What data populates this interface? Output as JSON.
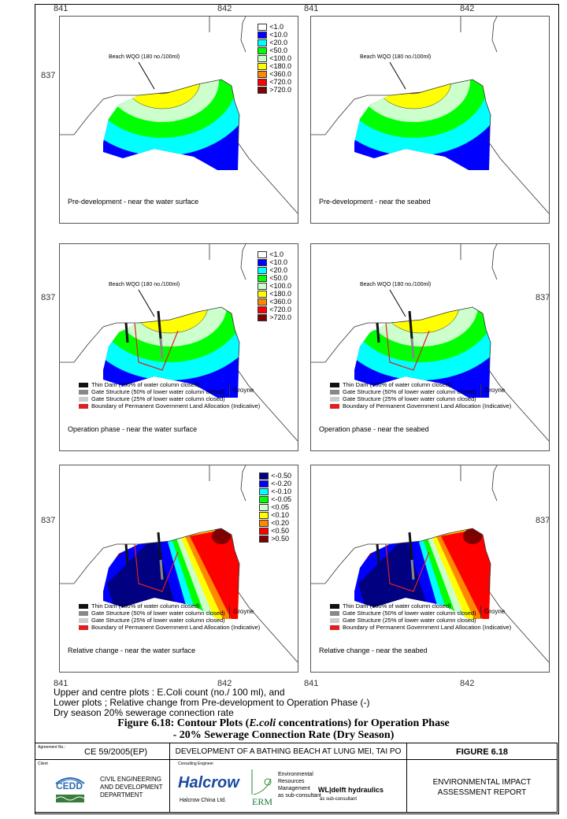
{
  "axes": {
    "x_left": "841",
    "x_right": "842",
    "y": "837"
  },
  "colors": {
    "conc": [
      "#ffffff",
      "#0000ff",
      "#00ffff",
      "#00ff00",
      "#ccffcc",
      "#ffff00",
      "#ff8800",
      "#ff0000",
      "#800000"
    ],
    "rel": [
      "#000080",
      "#0000ff",
      "#00ffff",
      "#00ff00",
      "#ccffcc",
      "#ffff00",
      "#ff8800",
      "#ff0000",
      "#800000"
    ]
  },
  "legend_conc": [
    "<1.0",
    "<10.0",
    "<20.0",
    "<50.0",
    "<100.0",
    "<180.0",
    "<360.0",
    "<720.0",
    ">720.0"
  ],
  "legend_rel": [
    "<-0.50",
    "<-0.20",
    "<-0.10",
    "<-0.05",
    "<0.05",
    "<0.10",
    "<0.20",
    "<0.50",
    ">0.50"
  ],
  "wqo_label": "Beach WQO (180 no./100ml)",
  "structures": [
    "Thin Dam (100% of water column closed)",
    "Gate Structure (50% of lower water column closed)",
    "Gate Structure (25% of lower water column closed)",
    "Boundary of Permanent Government Land Allocation (Indicative)"
  ],
  "groyne": "Groyne",
  "panels": [
    {
      "label": "Pre-development - near the water surface",
      "kind": "conc",
      "legend": true,
      "wqo": true,
      "structs": false
    },
    {
      "label": "Pre-development - near the seabed",
      "kind": "conc",
      "legend": false,
      "wqo": true,
      "structs": false
    },
    {
      "label": "Operation phase - near the water surface",
      "kind": "op",
      "legend": true,
      "wqo": true,
      "structs": true
    },
    {
      "label": "Operation phase - near the seabed",
      "kind": "op",
      "legend": false,
      "wqo": true,
      "structs": true
    },
    {
      "label": "Relative change - near the water surface",
      "kind": "rel",
      "legend": true,
      "wqo": false,
      "structs": true
    },
    {
      "label": "Relative change - near the seabed",
      "kind": "rel",
      "legend": false,
      "wqo": false,
      "structs": true
    }
  ],
  "caption": [
    "Upper and centre plots : E.Coli count (no./ 100 ml), and",
    "Lower plots ; Relative change from Pre-development to Operation Phase (-)",
    "Dry season 20% sewerage connection rate"
  ],
  "figure_title": {
    "prefix": "Figure 6.18:  Contour Plots (",
    "italic": "E.coli",
    "suffix": " concentrations) for Operation Phase",
    "line2": "- 20% Sewerage Connection Rate (Dry Season)"
  },
  "footer": {
    "agreement_label": "Agreement No.:",
    "agreement_no": "CE 59/2005(EP)",
    "project": "DEVELOPMENT OF A BATHING BEACH AT LUNG MEI, TAI PO",
    "figure_no": "FIGURE 6.18",
    "client_label": "Client",
    "client_logo": "CEDD",
    "client_name": [
      "CIVIL ENGINEERING",
      "AND DEVELOPMENT",
      "DEPARTMENT"
    ],
    "consultant_label": "Consulting Engineer",
    "halcrow": "Halcrow",
    "halcrow_sub": "Halcrow China Ltd.",
    "erm": "ERM",
    "erm_name": [
      "Environmental",
      "Resources",
      "Management"
    ],
    "erm_sub": "as sub-consultant",
    "delft": "WL|delft hydraulics",
    "delft_sub": "as sub-consultant",
    "report": [
      "ENVIRONMENTAL IMPACT",
      "ASSESSMENT REPORT"
    ]
  }
}
